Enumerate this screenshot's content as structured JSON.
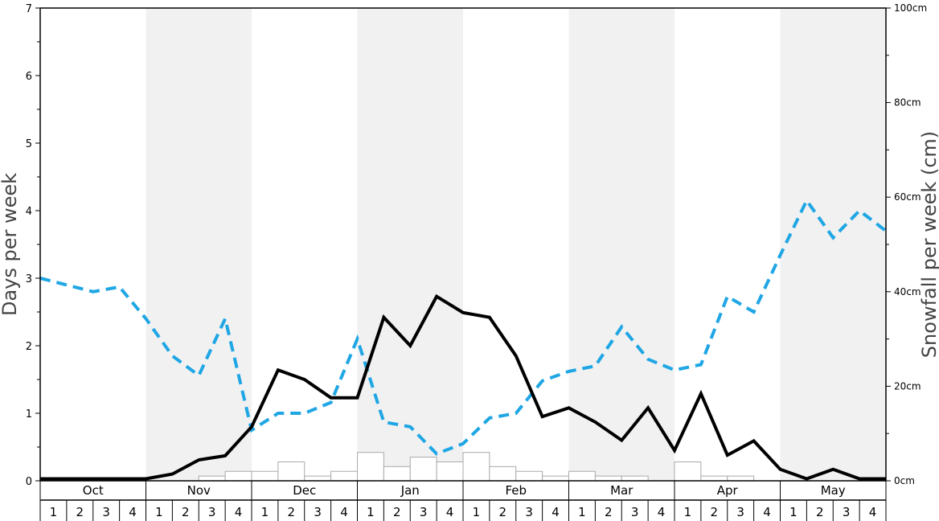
{
  "chart_data": {
    "type": "line",
    "title": "",
    "ylabel_left": "Days per week",
    "ylabel_right": "Snowfall per week (cm)",
    "ylim_left": [
      0,
      7
    ],
    "ylim_right": [
      0,
      100
    ],
    "left_ticks": [
      "0",
      "1",
      "2",
      "3",
      "4",
      "5",
      "6",
      "7"
    ],
    "right_ticks": [
      "0cm",
      "20cm",
      "40cm",
      "60cm",
      "80cm",
      "100cm"
    ],
    "months": [
      "Oct",
      "Nov",
      "Dec",
      "Jan",
      "Feb",
      "Mar",
      "Apr",
      "May"
    ],
    "weeks": [
      "1",
      "2",
      "3",
      "4"
    ],
    "shaded_months": [
      "Nov",
      "Jan",
      "Mar",
      "May"
    ],
    "colors": {
      "days": "#000000",
      "dashed": "#1fa6e4",
      "shade": "#f1f1f1",
      "bar_edge": "#aaaaaa"
    },
    "series": [
      {
        "values": [
          0.03,
          0.03,
          0.03,
          0.03,
          0.03,
          0.1,
          0.31,
          0.37,
          0.8,
          1.64,
          1.5,
          1.23,
          1.23,
          2.42,
          2.0,
          2.73,
          2.49,
          2.42,
          1.85,
          0.95,
          1.08,
          0.87,
          0.6,
          1.08,
          0.45,
          1.29,
          0.38,
          0.59,
          0.17,
          0.03,
          0.17,
          0.03,
          0.03
        ]
      },
      {
        "values": [
          3.0,
          2.9,
          2.8,
          2.87,
          2.4,
          1.85,
          1.56,
          2.4,
          0.75,
          1.0,
          1.0,
          1.16,
          2.1,
          0.87,
          0.8,
          0.4,
          0.55,
          0.93,
          1.0,
          1.48,
          1.62,
          1.7,
          2.28,
          1.8,
          1.64,
          1.72,
          2.73,
          2.5,
          3.34,
          4.15,
          3.6,
          4.0,
          3.7
        ]
      }
    ],
    "bars": {
      "unit": "cm",
      "values": [
        0,
        0,
        0,
        0,
        0,
        0,
        1,
        2,
        2,
        4,
        1,
        2,
        6,
        3,
        5,
        4,
        6,
        3,
        2,
        1,
        2,
        1,
        1,
        0,
        4,
        1,
        1,
        0,
        0,
        0,
        0,
        0,
        0
      ]
    }
  }
}
